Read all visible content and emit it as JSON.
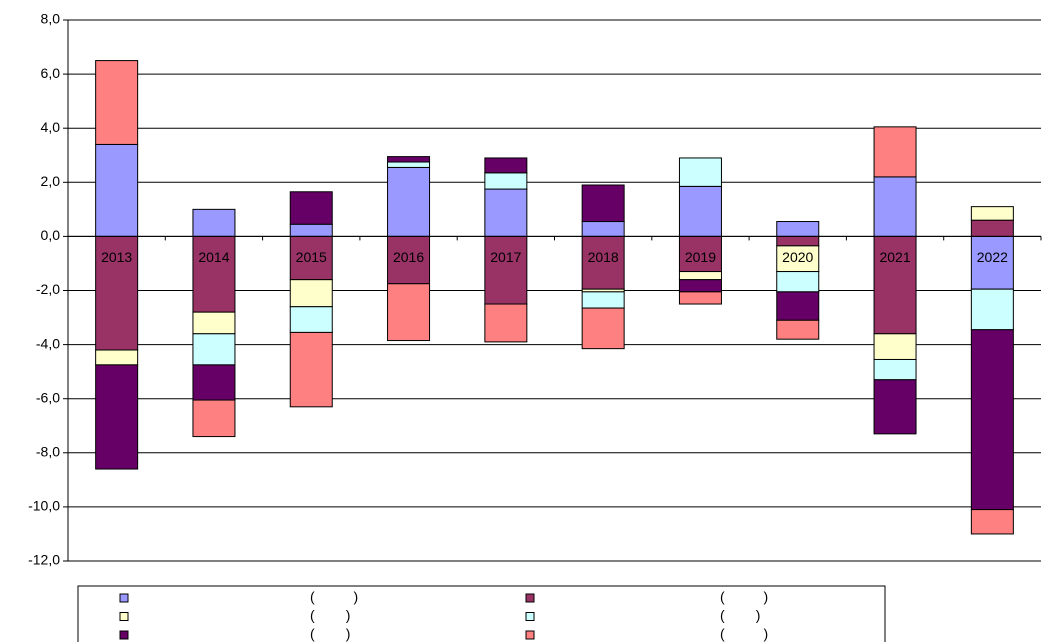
{
  "chart_data": {
    "type": "stacked-bar",
    "categories": [
      "2013",
      "2014",
      "2015",
      "2016",
      "2017",
      "2018",
      "2019",
      "2020",
      "2021",
      "2022"
    ],
    "series": [
      {
        "name": "(          )",
        "color": "#9999ff",
        "values": [
          3.4,
          1.0,
          0.45,
          2.55,
          1.75,
          0.55,
          1.85,
          0.55,
          2.2,
          -1.95
        ]
      },
      {
        "name": "(          )",
        "color": "#993366",
        "values": [
          -4.2,
          -2.8,
          -1.6,
          -1.75,
          -2.5,
          -1.95,
          -1.3,
          -0.35,
          -3.6,
          0.6
        ]
      },
      {
        "name": "(        )",
        "color": "#ffffcc",
        "values": [
          -0.55,
          -0.8,
          -1.0,
          0,
          0,
          -0.1,
          -0.3,
          -0.95,
          -0.95,
          0.5
        ]
      },
      {
        "name": "(        )",
        "color": "#ccffff",
        "values": [
          0,
          -1.15,
          -0.95,
          0.2,
          0.6,
          -0.6,
          1.05,
          -0.75,
          -0.75,
          -1.5
        ]
      },
      {
        "name": "(        )",
        "color": "#660066",
        "values": [
          -3.85,
          -1.3,
          1.2,
          0.2,
          0.55,
          1.35,
          -0.45,
          -1.05,
          -2.0,
          -6.65
        ]
      },
      {
        "name": "(          )",
        "color": "#ff8080",
        "values": [
          3.1,
          -1.35,
          -2.75,
          -2.1,
          -1.4,
          -1.5,
          -0.45,
          -0.7,
          1.85,
          -0.9
        ]
      }
    ],
    "ylim": [
      -12,
      8
    ],
    "yticks": [
      {
        "value": -12,
        "label": "-12,0"
      },
      {
        "value": -10,
        "label": "-10,0"
      },
      {
        "value": -8,
        "label": "-8,0"
      },
      {
        "value": -6,
        "label": "-6,0"
      },
      {
        "value": -4,
        "label": "-4,0"
      },
      {
        "value": -2,
        "label": "-2,0"
      },
      {
        "value": 0,
        "label": "0,0"
      },
      {
        "value": 2,
        "label": "2,0"
      },
      {
        "value": 4,
        "label": "4,0"
      },
      {
        "value": 6,
        "label": "6,0"
      },
      {
        "value": 8,
        "label": "8,0"
      }
    ],
    "grid": true
  }
}
